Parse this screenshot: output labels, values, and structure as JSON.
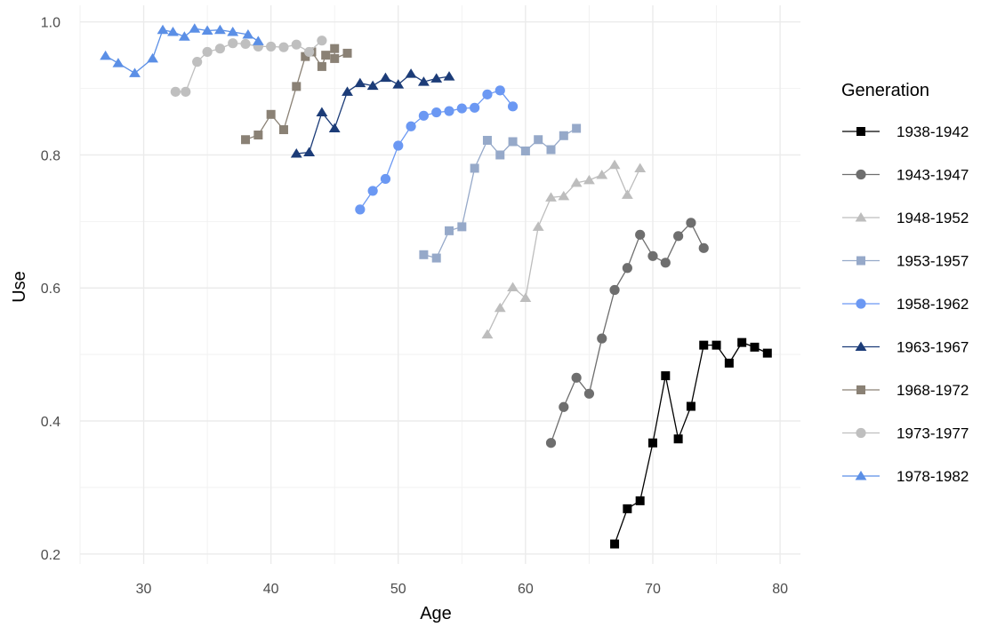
{
  "chart_data": {
    "type": "line",
    "title": "",
    "xlabel": "Age",
    "ylabel": "Use",
    "xlim": [
      25,
      81.6
    ],
    "ylim": [
      0.185,
      1.025
    ],
    "x_ticks": [
      30,
      40,
      50,
      60,
      70,
      80
    ],
    "y_ticks": [
      0.2,
      0.4,
      0.6,
      0.8,
      1.0
    ],
    "x_tick_labels": [
      "30",
      "40",
      "50",
      "60",
      "70",
      "80"
    ],
    "y_tick_labels": [
      "0.2",
      "0.4",
      "0.6",
      "0.8",
      "1.0"
    ],
    "grid": true,
    "legend": {
      "title": "Generation",
      "position": "right"
    },
    "series": [
      {
        "name": "1938-1942",
        "color": "#000000",
        "marker": "square",
        "x": [
          67,
          68,
          69,
          70,
          71,
          72,
          73,
          74,
          75,
          76,
          77,
          78,
          79
        ],
        "y": [
          0.215,
          0.268,
          0.28,
          0.367,
          0.468,
          0.373,
          0.422,
          0.514,
          0.514,
          0.487,
          0.518,
          0.511,
          0.502
        ]
      },
      {
        "name": "1943-1947",
        "color": "#6e6e6e",
        "marker": "circle",
        "x": [
          62,
          63,
          64,
          65,
          66,
          67,
          68,
          69,
          70,
          71,
          72,
          73,
          74
        ],
        "y": [
          0.367,
          0.421,
          0.465,
          0.441,
          0.524,
          0.597,
          0.63,
          0.68,
          0.648,
          0.638,
          0.678,
          0.698,
          0.66
        ]
      },
      {
        "name": "1948-1952",
        "color": "#bdbdbd",
        "marker": "triangle",
        "x": [
          57,
          58,
          59,
          60,
          61,
          62,
          63,
          64,
          65,
          66,
          67,
          68,
          69
        ],
        "y": [
          0.53,
          0.57,
          0.601,
          0.585,
          0.692,
          0.736,
          0.738,
          0.758,
          0.762,
          0.77,
          0.785,
          0.74,
          0.78
        ]
      },
      {
        "name": "1953-1957",
        "color": "#96a9c9",
        "marker": "square",
        "x": [
          52,
          53,
          54,
          55,
          56,
          57,
          58,
          59,
          60,
          61,
          62,
          63,
          64
        ],
        "y": [
          0.65,
          0.645,
          0.686,
          0.692,
          0.78,
          0.822,
          0.8,
          0.82,
          0.806,
          0.823,
          0.808,
          0.829,
          0.84
        ]
      },
      {
        "name": "1958-1962",
        "color": "#6b98f3",
        "marker": "circle",
        "x": [
          47,
          48,
          49,
          50,
          51,
          52,
          53,
          54,
          55,
          56,
          57,
          58,
          59
        ],
        "y": [
          0.718,
          0.746,
          0.764,
          0.814,
          0.843,
          0.859,
          0.864,
          0.866,
          0.87,
          0.871,
          0.891,
          0.897,
          0.873
        ]
      },
      {
        "name": "1963-1967",
        "color": "#1c3c78",
        "marker": "triangle",
        "x": [
          42,
          43,
          44,
          45,
          46,
          47,
          48,
          49,
          50,
          51,
          52,
          53,
          54
        ],
        "y": [
          0.802,
          0.804,
          0.864,
          0.84,
          0.895,
          0.908,
          0.904,
          0.916,
          0.906,
          0.922,
          0.91,
          0.915,
          0.918
        ]
      },
      {
        "name": "1968-1972",
        "color": "#8a8175",
        "marker": "square",
        "x": [
          38,
          39,
          40,
          41,
          42,
          42.7,
          43.2,
          44,
          44.3,
          45,
          45,
          46
        ],
        "y": [
          0.823,
          0.83,
          0.861,
          0.838,
          0.903,
          0.948,
          0.955,
          0.933,
          0.95,
          0.96,
          0.945,
          0.953
        ]
      },
      {
        "name": "1973-1977",
        "color": "#bfbfbf",
        "marker": "circle",
        "x": [
          32.5,
          33.3,
          34.2,
          35,
          36,
          37,
          38,
          39,
          40,
          41,
          42,
          43,
          44
        ],
        "y": [
          0.895,
          0.895,
          0.94,
          0.955,
          0.96,
          0.968,
          0.967,
          0.963,
          0.963,
          0.962,
          0.966,
          0.955,
          0.972
        ]
      },
      {
        "name": "1978-1982",
        "color": "#5b8fe6",
        "marker": "triangle",
        "x": [
          27,
          28,
          29.3,
          30.7,
          31.5,
          32.3,
          33.2,
          34,
          35,
          36,
          37,
          38.2,
          39
        ],
        "y": [
          0.949,
          0.938,
          0.923,
          0.945,
          0.988,
          0.985,
          0.978,
          0.99,
          0.987,
          0.988,
          0.985,
          0.981,
          0.971
        ]
      }
    ]
  }
}
